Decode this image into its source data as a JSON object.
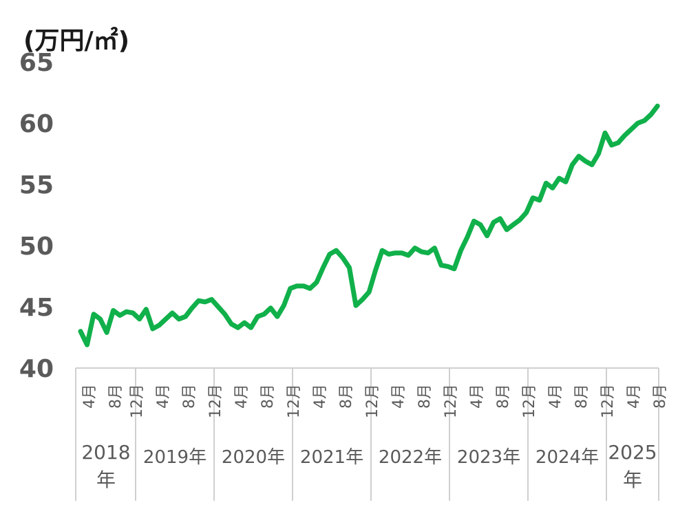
{
  "chart_data": {
    "type": "line",
    "title": "",
    "unit_label": "(万円/㎡)",
    "xlabel": "",
    "ylabel": "",
    "ylim": [
      40,
      65
    ],
    "yticks": [
      "40",
      "45",
      "50",
      "55",
      "60",
      "65"
    ],
    "grid": false,
    "legend": "none",
    "line_color": "#10b04a",
    "axis_text_color": "#5a5a5a",
    "x_tick_labels": [
      "4月",
      "8月",
      "12月",
      "4月",
      "8月",
      "12月",
      "4月",
      "8月",
      "12月",
      "4月",
      "8月",
      "12月",
      "4月",
      "8月",
      "12月",
      "4月",
      "8月",
      "12月",
      "4月",
      "8月",
      "12月",
      "4月",
      "8月"
    ],
    "year_labels": [
      "2018年",
      "2019年",
      "2020年",
      "2021年",
      "2022年",
      "2023年",
      "2024年",
      "2025年"
    ],
    "series": [
      {
        "values": [
          43.0,
          41.9,
          44.4,
          44.0,
          42.9,
          44.7,
          44.3,
          44.6,
          44.5,
          44.0,
          44.8,
          43.2,
          43.5,
          44.0,
          44.5,
          44.0,
          44.2,
          44.9,
          45.5,
          45.4,
          45.6,
          45.0,
          44.4,
          43.6,
          43.3,
          43.7,
          43.3,
          44.2,
          44.4,
          44.9,
          44.2,
          45.1,
          46.5,
          46.7,
          46.7,
          46.5,
          47.0,
          48.2,
          49.3,
          49.6,
          49.0,
          48.2,
          45.1,
          45.6,
          46.2,
          48.0,
          49.6,
          49.3,
          49.4,
          49.4,
          49.2,
          49.8,
          49.5,
          49.4,
          49.8,
          48.4,
          48.3,
          48.1,
          49.6,
          50.7,
          52.0,
          51.7,
          50.8,
          51.9,
          52.2,
          51.3,
          51.7,
          52.1,
          52.7,
          53.9,
          53.7,
          55.1,
          54.7,
          55.5,
          55.2,
          56.6,
          57.3,
          56.9,
          56.6,
          57.5,
          59.2,
          58.2,
          58.4,
          59.0,
          59.5,
          60.0,
          60.2,
          60.7,
          61.4
        ]
      }
    ]
  }
}
